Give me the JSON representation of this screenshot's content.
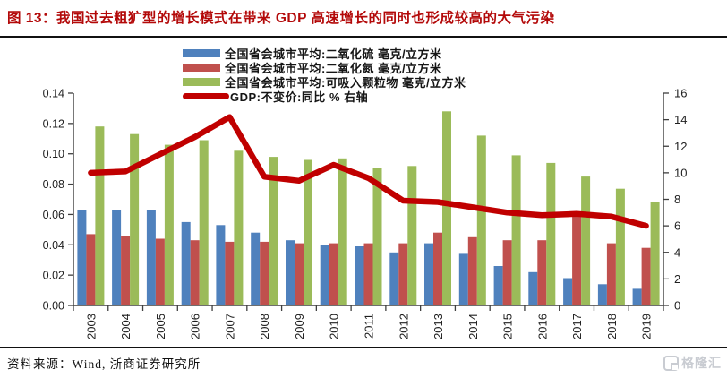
{
  "header": {
    "title": "图 13：我国过去粗犷型的增长模式在带来 GDP 高速增长的同时也形成较高的大气污染",
    "title_color": "#b30909"
  },
  "chart_data": {
    "type": "bar+line",
    "title": "我国过去粗犷型的增长模式在带来GDP高速增长的同时也形成较高的大气污染",
    "categories": [
      "2003",
      "2004",
      "2005",
      "2006",
      "2007",
      "2008",
      "2009",
      "2010",
      "2011",
      "2012",
      "2013",
      "2014",
      "2015",
      "2016",
      "2017",
      "2018",
      "2019"
    ],
    "series": [
      {
        "name": "全国省会城市平均:二氧化硫 毫克/立方米",
        "color": "#4F81BD",
        "values": [
          0.063,
          0.063,
          0.063,
          0.055,
          0.053,
          0.048,
          0.043,
          0.04,
          0.039,
          0.035,
          0.041,
          0.034,
          0.026,
          0.022,
          0.018,
          0.014,
          0.011
        ]
      },
      {
        "name": "全国省会城市平均:二氧化氮 毫克/立方米",
        "color": "#C0504D",
        "values": [
          0.047,
          0.046,
          0.044,
          0.043,
          0.042,
          0.042,
          0.041,
          0.041,
          0.041,
          0.041,
          0.048,
          0.045,
          0.043,
          0.043,
          0.059,
          0.041,
          0.038
        ]
      },
      {
        "name": "全国省会城市平均:可吸入颗粒物 毫克/立方米",
        "color": "#9BBB59",
        "values": [
          0.118,
          0.113,
          0.106,
          0.109,
          0.102,
          0.098,
          0.096,
          0.097,
          0.091,
          0.092,
          0.128,
          0.112,
          0.099,
          0.094,
          0.085,
          0.077,
          0.068
        ]
      }
    ],
    "line_series": {
      "name": "GDP:不变价:同比 % 右轴",
      "color": "#C00000",
      "axis": "right",
      "values": [
        10.0,
        10.1,
        11.4,
        12.7,
        14.2,
        9.7,
        9.4,
        10.6,
        9.6,
        7.9,
        7.8,
        7.4,
        7.0,
        6.8,
        6.9,
        6.7,
        6.0
      ]
    },
    "left_axis": {
      "min": 0,
      "max": 0.14,
      "step": 0.02,
      "tick_format": "0.00"
    },
    "right_axis": {
      "min": 0,
      "max": 16,
      "step": 2,
      "tick_format": "0"
    },
    "grid": false,
    "legend_position": "top"
  },
  "footer": {
    "source_label": "资料来源：Wind, 浙商证券研究所",
    "watermark": "格隆汇",
    "watermark_color": "#c9ccd2"
  }
}
